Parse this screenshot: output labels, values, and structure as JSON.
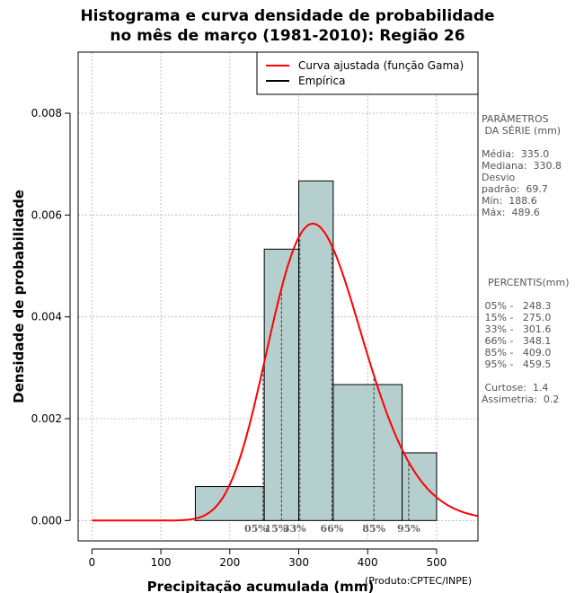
{
  "chart_data": {
    "type": "bar",
    "title": [
      "Histograma e curva densidade de probabilidade",
      "no mês de março (1981-2010): Região 26"
    ],
    "xlabel": "Precipitação acumulada (mm)",
    "ylabel": "Densidade de probabilidade",
    "xlim": [
      -20,
      560
    ],
    "ylim": [
      -0.0004,
      0.0092
    ],
    "xticks": [
      0,
      100,
      200,
      300,
      400,
      500
    ],
    "xtick_labels": [
      "0",
      "100",
      "200",
      "300",
      "400",
      "500"
    ],
    "yticks": [
      0.0,
      0.002,
      0.004,
      0.006,
      0.008
    ],
    "ytick_labels": [
      "0.000",
      "0.002",
      "0.004",
      "0.006",
      "0.008"
    ],
    "grid": true,
    "bins": [
      {
        "x0": 150,
        "x1": 250,
        "density": 0.000667
      },
      {
        "x0": 250,
        "x1": 300,
        "density": 0.00533
      },
      {
        "x0": 300,
        "x1": 350,
        "density": 0.00667
      },
      {
        "x0": 350,
        "x1": 450,
        "density": 0.00267
      },
      {
        "x0": 450,
        "x1": 500,
        "density": 0.00133
      }
    ],
    "gamma_fit": {
      "shape": 23.1,
      "scale": 14.5
    },
    "percentile_lines": [
      {
        "label": "05%",
        "x": 248.3
      },
      {
        "label": "15%",
        "x": 275.0
      },
      {
        "label": "33%",
        "x": 301.6
      },
      {
        "label": "66%",
        "x": 348.1
      },
      {
        "label": "85%",
        "x": 409.0
      },
      {
        "label": "95%",
        "x": 459.5
      }
    ],
    "legend": [
      {
        "label": "Curva ajustada (função Gama)",
        "color": "#ff0000"
      },
      {
        "label": "Empírica",
        "color": "#000000"
      }
    ],
    "legend_position": "top-right",
    "colors": {
      "bar_fill": "#b5cfce",
      "curve": "#ff0000",
      "grid": "#b0b0b0"
    }
  },
  "stats_panel": {
    "params_title_1": "PARÂMETROS",
    "params_title_2": " DA SÉRIE (mm)",
    "media": "Média:  335.0",
    "mediana": "Mediana:  330.8",
    "desvio_1": "Desvio",
    "desvio_2": "padrão:  69.7",
    "min": "Mín:  188.6",
    "max": "Máx:  489.6",
    "percentis_title": "  PERCENTIS(mm)",
    "p05": " 05% -   248.3",
    "p15": " 15% -   275.0",
    "p33": " 33% -   301.6",
    "p66": " 66% -   348.1",
    "p85": " 85% -   409.0",
    "p95": " 95% -   459.5",
    "curtose": " Curtose:  1.4",
    "assimetria": "Assimetria:  0.2"
  },
  "credit": "(Produto:CPTEC/INPE)"
}
